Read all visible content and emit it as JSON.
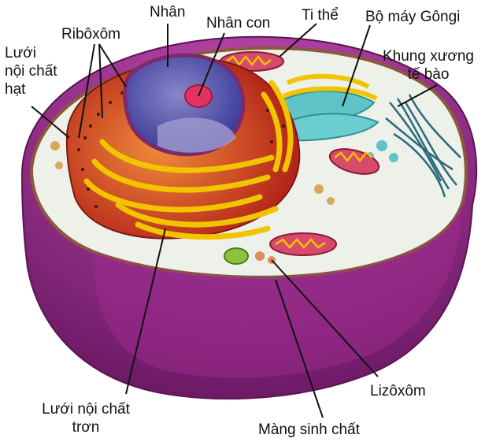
{
  "labels": {
    "nhan": "Nhân",
    "nhan_con": "Nhân con",
    "ti_the": "Ti thể",
    "bo_may_gongi": "Bộ máy Gôngi",
    "khung_xuong_line1": "Khung xương",
    "khung_xuong_line2": "tế bào",
    "riboxom": "Ribôxôm",
    "luoi_hat_line1": "Lưới",
    "luoi_hat_line2": "nội chất",
    "luoi_hat_line3": "hạt",
    "luoi_tron_line1": "Lưới nội chất",
    "luoi_tron_line2": "trơn",
    "lizoxom": "Lizôxôm",
    "mang_sinh_chat": "Màng sinh chất"
  },
  "colors": {
    "cell_body": "#a8329a",
    "cell_body_dark": "#7a1f73",
    "cytoplasm": "#f2f3f0",
    "nucleus": "#3a3a9a",
    "nucleolus": "#e2335e",
    "nuclear_envelope": "#7b2a6b",
    "rough_er": "#d8381f",
    "golgi": "#5fc3c7",
    "mitochondria": "#d84a6a",
    "ribbon_yellow": "#f2c400",
    "cytoskeleton": "#2a6b7a",
    "leader_line": "#111111"
  }
}
